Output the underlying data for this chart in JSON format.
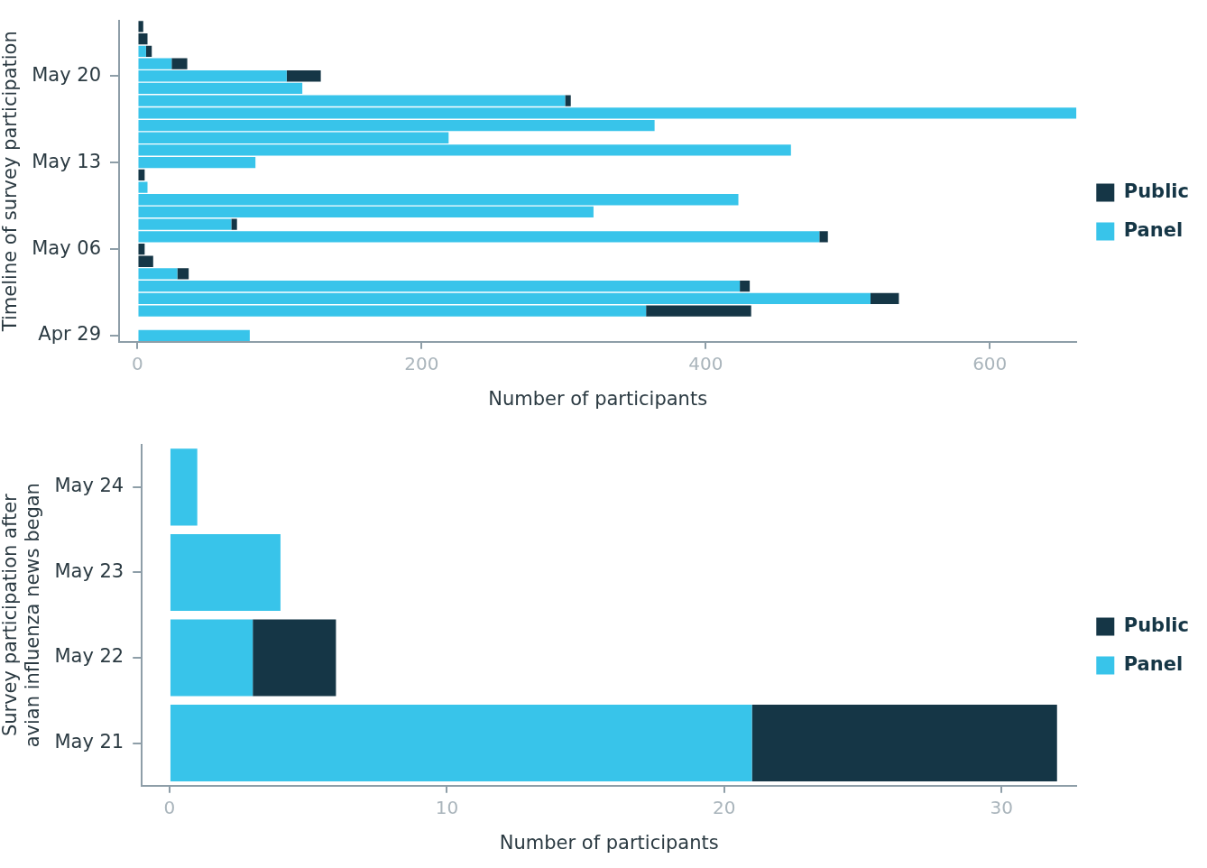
{
  "chart_data": [
    {
      "type": "bar",
      "orientation": "horizontal",
      "stacked": true,
      "grid": false,
      "legend": "right",
      "xlabel": "Number of participants",
      "ylabel": "Timeline of survey participation",
      "categories": [
        null,
        null,
        null,
        null,
        "May 20",
        null,
        null,
        null,
        null,
        null,
        null,
        "May 13",
        null,
        null,
        null,
        null,
        null,
        null,
        "May 06",
        null,
        null,
        null,
        null,
        null,
        null,
        "Apr 29"
      ],
      "xlim": [
        -13,
        661
      ],
      "xticks": [
        0,
        200,
        400,
        600
      ],
      "series": [
        {
          "name": "Panel",
          "color": "#38c4ea",
          "values": [
            0,
            0,
            6,
            24,
            105,
            116,
            301,
            661,
            364,
            219,
            460,
            83,
            0,
            7,
            423,
            321,
            66,
            480,
            0,
            0,
            28,
            424,
            516,
            358,
            null,
            79
          ]
        },
        {
          "name": "Public",
          "color": "#153646",
          "values": [
            4,
            7,
            4,
            11,
            24,
            0,
            4,
            0,
            0,
            0,
            0,
            0,
            5,
            0,
            0,
            0,
            4,
            6,
            5,
            11,
            8,
            7,
            20,
            74,
            null,
            0
          ]
        }
      ]
    },
    {
      "type": "bar",
      "orientation": "horizontal",
      "stacked": true,
      "grid": false,
      "legend": "right",
      "xlabel": "Number of participants",
      "ylabel": "Survey participation after\navian influenza news began",
      "categories": [
        "May 24",
        "May 23",
        "May 22",
        "May 21"
      ],
      "xlim": [
        -1,
        32.7
      ],
      "xticks": [
        0,
        10,
        20,
        30
      ],
      "series": [
        {
          "name": "Panel",
          "color": "#38c4ea",
          "values": [
            1,
            4,
            3,
            21
          ]
        },
        {
          "name": "Public",
          "color": "#153646",
          "values": [
            0,
            0,
            3,
            11
          ]
        }
      ]
    }
  ]
}
